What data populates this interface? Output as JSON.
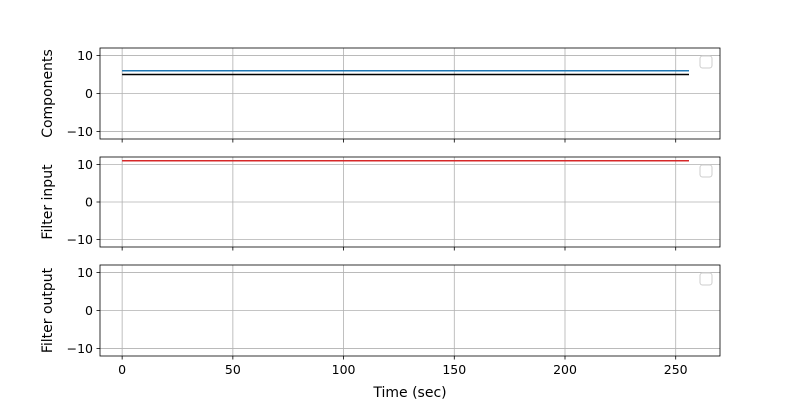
{
  "chart_data": {
    "type": "line",
    "layout": "3 stacked subplots, shared x axis",
    "xlabel": "Time (sec)",
    "xlim": [
      -10,
      270
    ],
    "x_ticks": [
      0,
      50,
      100,
      150,
      200,
      250
    ],
    "x_tick_labels": [
      "0",
      "50",
      "100",
      "150",
      "200",
      "250"
    ],
    "grid": true,
    "legend": "top-right, empty box in each subplot",
    "subplots": [
      {
        "ylabel": "Components",
        "ylim": [
          -12,
          12
        ],
        "y_ticks": [
          -10,
          0,
          10
        ],
        "y_tick_labels": [
          "−10",
          "0",
          "10"
        ],
        "series": [
          {
            "color": "#1f77b4",
            "x": [
              0,
              256
            ],
            "y": [
              6,
              6
            ]
          },
          {
            "color": "#000000",
            "x": [
              0,
              256
            ],
            "y": [
              5,
              5
            ]
          }
        ]
      },
      {
        "ylabel": "Filter input",
        "ylim": [
          -12,
          12
        ],
        "y_ticks": [
          -10,
          0,
          10
        ],
        "y_tick_labels": [
          "−10",
          "0",
          "10"
        ],
        "series": [
          {
            "color": "#d62728",
            "x": [
              0,
              256
            ],
            "y": [
              11,
              11
            ]
          }
        ]
      },
      {
        "ylabel": "Filter output",
        "ylim": [
          -12,
          12
        ],
        "y_ticks": [
          -10,
          0,
          10
        ],
        "y_tick_labels": [
          "−10",
          "0",
          "10"
        ],
        "series": []
      }
    ]
  },
  "colors": {
    "grid": "#b0b0b0",
    "frame": "#000000",
    "legend_border": "#cccccc"
  }
}
